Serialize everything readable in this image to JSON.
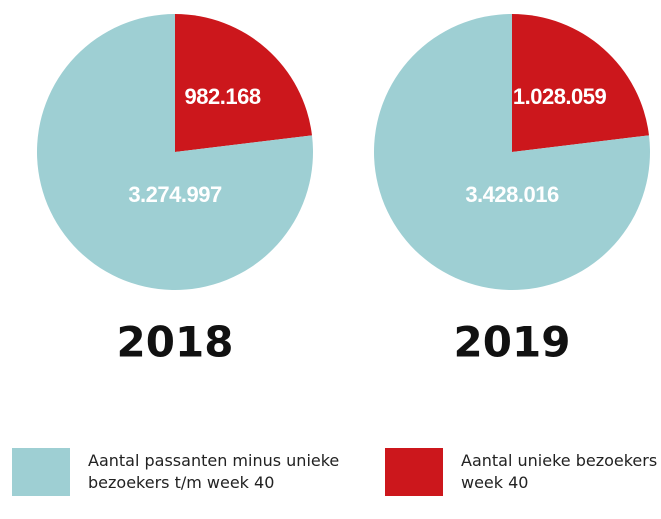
{
  "chart_data": [
    {
      "type": "pie",
      "title": "2018",
      "values": [
        982168,
        3274997
      ],
      "value_labels": [
        "982.168",
        "3.274.997"
      ],
      "colors": [
        "#cc171c",
        "#9ecfd3"
      ]
    },
    {
      "type": "pie",
      "title": "2019",
      "values": [
        1028059,
        3428016
      ],
      "value_labels": [
        "1.028.059",
        "3.428.016"
      ],
      "colors": [
        "#cc171c",
        "#9ecfd3"
      ]
    }
  ],
  "legend": [
    {
      "name": "Aantal passanten minus unieke bezoekers t/m week 40",
      "color": "#9ecfd3"
    },
    {
      "name": "Aantal unieke bezoekers t/m week 40",
      "color": "#cc171c"
    }
  ]
}
